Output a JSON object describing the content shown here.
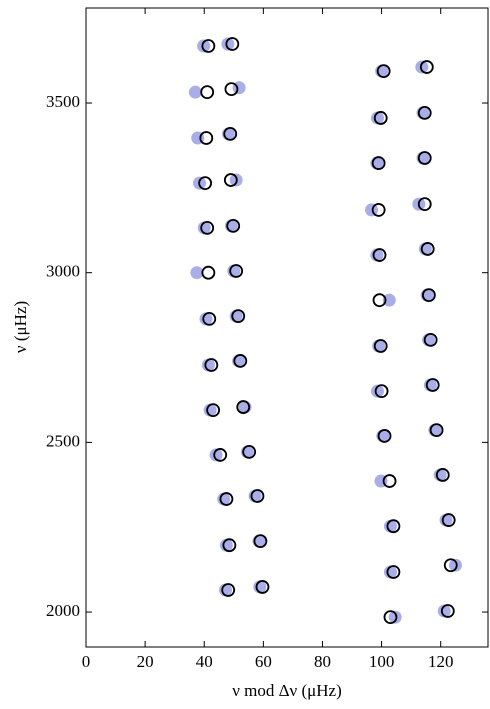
{
  "chart_data": {
    "type": "scatter",
    "xlabel": "ν mod Δν (μHz)",
    "ylabel": "ν (μHz)",
    "xlim": [
      0,
      136
    ],
    "ylim": [
      1897,
      3780
    ],
    "xticks": [
      0,
      20,
      40,
      60,
      80,
      100,
      120
    ],
    "yticks": [
      2000,
      2500,
      3000,
      3500
    ],
    "series": [
      {
        "color": "#a9aee8",
        "marker": "filled",
        "x": [
          58.8,
          47.2,
          58.5,
          47.5,
          57.2,
          46.6,
          54.6,
          44.0,
          53.8,
          42.0,
          51.6,
          41.4,
          50.8,
          40.6,
          50.0,
          37.5,
          49.2,
          40.0,
          50.8,
          38.4,
          48.2,
          37.8,
          51.8,
          37.0,
          48.0,
          39.8,
          104.6,
          103.0,
          103.0,
          99.8,
          100.4,
          98.6,
          99.0,
          102.6,
          98.4,
          96.6,
          98.4,
          98.6,
          100.0,
          121.2,
          125.0,
          121.8,
          119.8,
          118.0,
          116.5,
          115.9,
          115.4,
          114.8,
          112.6,
          114.0,
          114.0,
          113.6
        ],
        "values": [
          2074,
          2065,
          2209,
          2197,
          2342,
          2333,
          2472,
          2463,
          2604,
          2595,
          2740,
          2728,
          2872,
          2864,
          3005,
          3000,
          3138,
          3132,
          3273,
          3264,
          3409,
          3397,
          3545,
          3532,
          3674,
          3668,
          1985,
          2118,
          2253,
          2386,
          2519,
          2651,
          2784,
          2919,
          3052,
          3185,
          3323,
          3456,
          3594,
          2003,
          2138,
          2271,
          2404,
          2536,
          2669,
          2802,
          2934,
          3070,
          3202,
          3338,
          3471,
          3606
        ]
      },
      {
        "color": "#000000",
        "marker": "open",
        "x": [
          59.7,
          48.1,
          59.0,
          48.5,
          58.0,
          47.5,
          55.2,
          45.4,
          53.2,
          43.0,
          52.2,
          42.4,
          51.5,
          41.7,
          50.8,
          41.4,
          49.8,
          41.0,
          49.0,
          40.3,
          48.8,
          40.7,
          49.2,
          41.0,
          49.5,
          41.4,
          103.0,
          104.0,
          104.0,
          102.7,
          101.0,
          100.0,
          99.7,
          99.3,
          99.3,
          99.0,
          99.0,
          99.7,
          100.7,
          122.4,
          123.4,
          122.7,
          120.7,
          118.6,
          117.3,
          116.6,
          116.0,
          115.6,
          114.6,
          114.6,
          114.6,
          115.3
        ],
        "values": [
          2074,
          2065,
          2209,
          2197,
          2342,
          2333,
          2472,
          2463,
          2604,
          2595,
          2740,
          2728,
          2872,
          2864,
          3005,
          3000,
          3138,
          3132,
          3273,
          3264,
          3409,
          3397,
          3541,
          3532,
          3674,
          3668,
          1985,
          2118,
          2253,
          2386,
          2519,
          2651,
          2784,
          2919,
          3052,
          3185,
          3323,
          3456,
          3594,
          2003,
          2138,
          2271,
          2404,
          2536,
          2669,
          2802,
          2934,
          3070,
          3202,
          3338,
          3471,
          3606
        ]
      }
    ]
  }
}
